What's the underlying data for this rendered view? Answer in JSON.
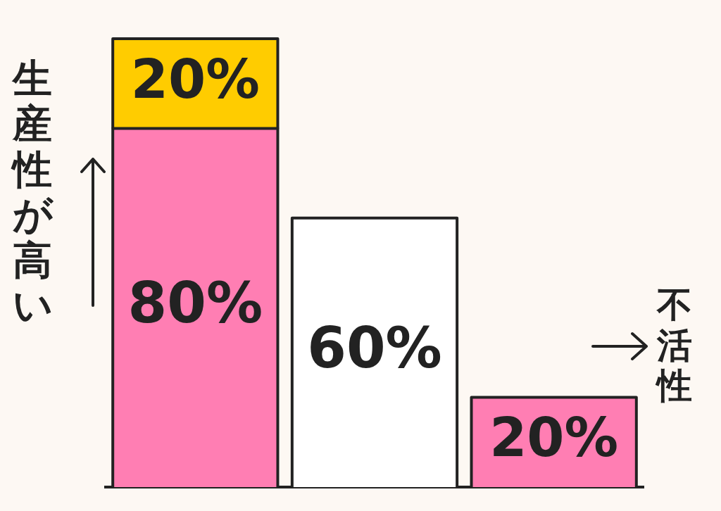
{
  "chart_data": {
    "type": "bar",
    "ylabel": "生産性が高い",
    "annotations": [
      "不活性"
    ],
    "categories": [
      null,
      null,
      null
    ],
    "stacked": true,
    "legend": false,
    "grid": false,
    "tick_labels": false,
    "series": [
      {
        "color": "#ff7eb3",
        "values": [
          80,
          null,
          20
        ],
        "value_labels": [
          "80%",
          null,
          "20%"
        ]
      },
      {
        "color": "#ffcc00",
        "values": [
          20,
          null,
          null
        ],
        "value_labels": [
          "20%",
          null,
          null
        ]
      },
      {
        "color": "#ffffff",
        "values": [
          null,
          60,
          null
        ],
        "value_labels": [
          null,
          "60%",
          null
        ]
      }
    ]
  }
}
